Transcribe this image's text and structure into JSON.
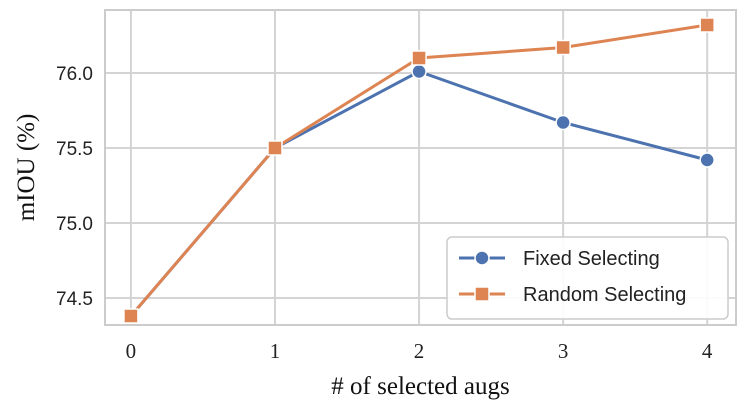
{
  "chart_data": {
    "type": "line",
    "x": [
      0,
      1,
      2,
      3,
      4
    ],
    "x_tick_labels": [
      "0",
      "1",
      "2",
      "3",
      "4"
    ],
    "y_tick_labels": [
      "74.5",
      "75.0",
      "75.5",
      "76.0"
    ],
    "y_ticks": [
      74.5,
      75.0,
      75.5,
      76.0
    ],
    "xlim": [
      -0.18,
      4.2
    ],
    "ylim": [
      74.32,
      76.42
    ],
    "xlabel": "# of selected augs",
    "ylabel": "mIOU (%)",
    "grid": true,
    "legend_position": "lower-right",
    "series": [
      {
        "name": "Fixed Selecting",
        "values": [
          74.38,
          75.5,
          76.01,
          75.67,
          75.42
        ],
        "color": "#4c72b0",
        "marker": "circle"
      },
      {
        "name": "Random Selecting",
        "values": [
          74.38,
          75.5,
          76.1,
          76.17,
          76.32
        ],
        "color": "#dd8452",
        "marker": "square"
      }
    ]
  }
}
